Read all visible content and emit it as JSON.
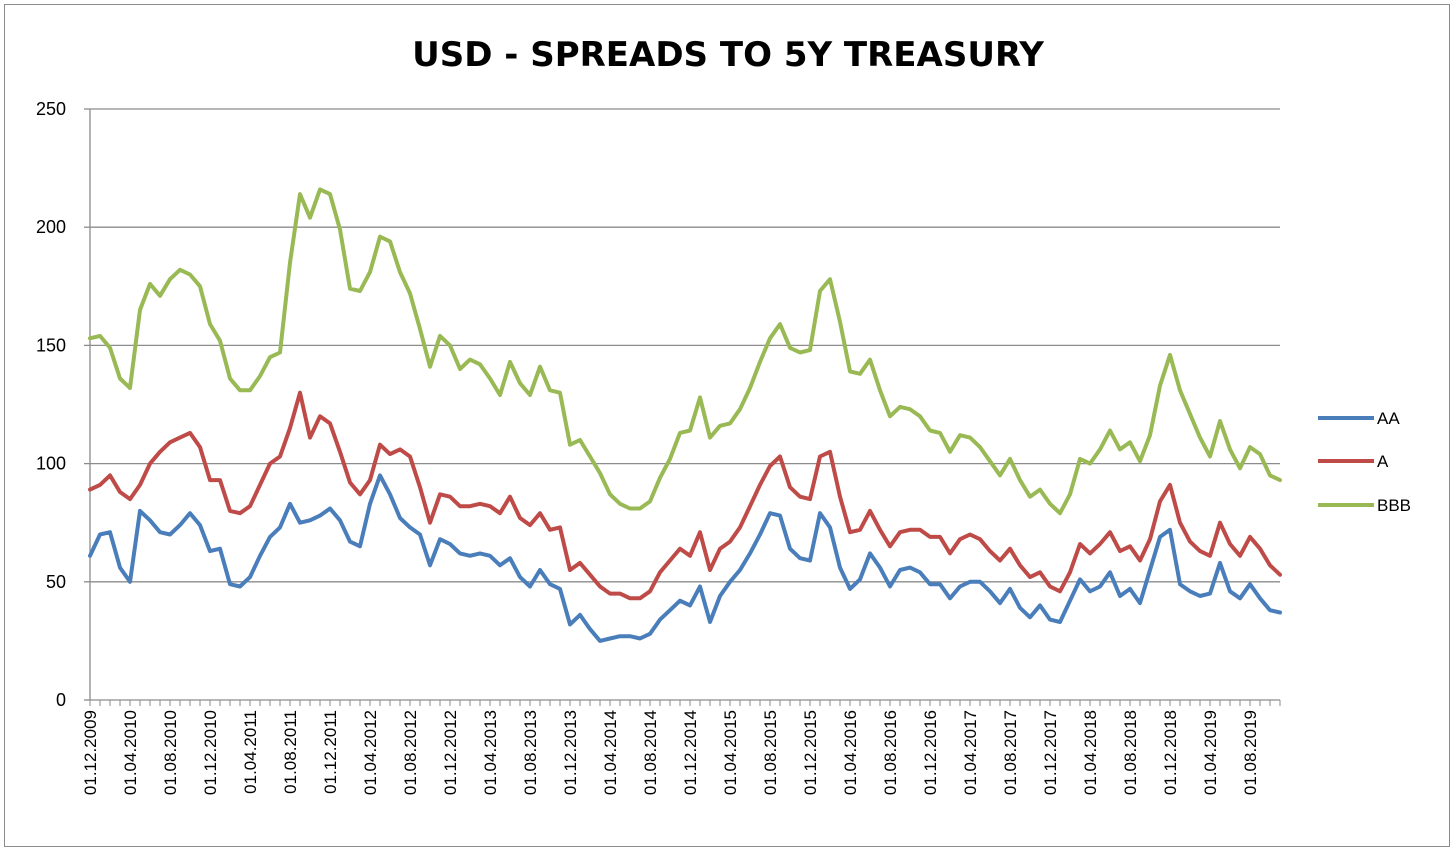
{
  "chart_data": {
    "type": "line",
    "title": "USD - SPREADS TO 5Y TREASURY",
    "xlabel": "",
    "ylabel": "",
    "ylim": [
      0,
      250
    ],
    "yticks": [
      0,
      50,
      100,
      150,
      200,
      250
    ],
    "grid": "horizontal",
    "legend_position": "right",
    "x_tick_labels": [
      "01.12.2009",
      "01.04.2010",
      "01.08.2010",
      "01.12.2010",
      "01.04.2011",
      "01.08.2011",
      "01.12.2011",
      "01.04.2012",
      "01.08.2012",
      "01.12.2012",
      "01.04.2013",
      "01.08.2013",
      "01.12.2013",
      "01.04.2014",
      "01.08.2014",
      "01.12.2014",
      "01.04.2015",
      "01.08.2015",
      "01.12.2015",
      "01.04.2016",
      "01.08.2016",
      "01.12.2016",
      "01.04.2017",
      "01.08.2017",
      "01.12.2017",
      "01.04.2018",
      "01.08.2018",
      "01.12.2018",
      "01.04.2019",
      "01.08.2019"
    ],
    "x_start": "01.12.2009",
    "x_end": "01.12.2019",
    "series": [
      {
        "name": "AA",
        "color": "#4a7ebb",
        "values": [
          61,
          70,
          71,
          56,
          50,
          80,
          76,
          71,
          70,
          74,
          79,
          74,
          63,
          64,
          49,
          48,
          52,
          61,
          69,
          73,
          83,
          75,
          76,
          78,
          81,
          76,
          67,
          65,
          83,
          95,
          87,
          77,
          73,
          70,
          57,
          68,
          66,
          62,
          61,
          62,
          61,
          57,
          60,
          52,
          48,
          55,
          49,
          47,
          32,
          36,
          30,
          25,
          26,
          27,
          27,
          26,
          28,
          34,
          38,
          42,
          40,
          48,
          33,
          44,
          50,
          55,
          62,
          70,
          79,
          78,
          64,
          60,
          59,
          79,
          73,
          56,
          47,
          51,
          62,
          56,
          48,
          55,
          56,
          54,
          49,
          49,
          43,
          48,
          50,
          50,
          46,
          41,
          47,
          39,
          35,
          40,
          34,
          33,
          42,
          51,
          46,
          48,
          54,
          44,
          47,
          41,
          55,
          69,
          72,
          49,
          46,
          44,
          45,
          58,
          46,
          43,
          49,
          43,
          38,
          37
        ]
      },
      {
        "name": "A",
        "color": "#be4b48",
        "values": [
          89,
          91,
          95,
          88,
          85,
          91,
          100,
          105,
          109,
          111,
          113,
          107,
          93,
          93,
          80,
          79,
          82,
          91,
          100,
          103,
          115,
          130,
          111,
          120,
          117,
          105,
          92,
          87,
          93,
          108,
          104,
          106,
          103,
          90,
          75,
          87,
          86,
          82,
          82,
          83,
          82,
          79,
          86,
          77,
          74,
          79,
          72,
          73,
          55,
          58,
          53,
          48,
          45,
          45,
          43,
          43,
          46,
          54,
          59,
          64,
          61,
          71,
          55,
          64,
          67,
          73,
          82,
          91,
          99,
          103,
          90,
          86,
          85,
          103,
          105,
          86,
          71,
          72,
          80,
          72,
          65,
          71,
          72,
          72,
          69,
          69,
          62,
          68,
          70,
          68,
          63,
          59,
          64,
          57,
          52,
          54,
          48,
          46,
          54,
          66,
          62,
          66,
          71,
          63,
          65,
          59,
          68,
          84,
          91,
          75,
          67,
          63,
          61,
          75,
          66,
          61,
          69,
          64,
          57,
          53
        ]
      },
      {
        "name": "BBB",
        "color": "#98b954",
        "values": [
          153,
          154,
          149,
          136,
          132,
          165,
          176,
          171,
          178,
          182,
          180,
          175,
          159,
          152,
          136,
          131,
          131,
          137,
          145,
          147,
          185,
          214,
          204,
          216,
          214,
          199,
          174,
          173,
          181,
          196,
          194,
          181,
          172,
          157,
          141,
          154,
          150,
          140,
          144,
          142,
          136,
          129,
          143,
          134,
          129,
          141,
          131,
          130,
          108,
          110,
          103,
          96,
          87,
          83,
          81,
          81,
          84,
          94,
          102,
          113,
          114,
          128,
          111,
          116,
          117,
          123,
          132,
          143,
          153,
          159,
          149,
          147,
          148,
          173,
          178,
          160,
          139,
          138,
          144,
          131,
          120,
          124,
          123,
          120,
          114,
          113,
          105,
          112,
          111,
          107,
          101,
          95,
          102,
          93,
          86,
          89,
          83,
          79,
          87,
          102,
          100,
          106,
          114,
          106,
          109,
          101,
          112,
          133,
          146,
          131,
          121,
          111,
          103,
          118,
          106,
          98,
          107,
          104,
          95,
          93
        ]
      }
    ]
  }
}
